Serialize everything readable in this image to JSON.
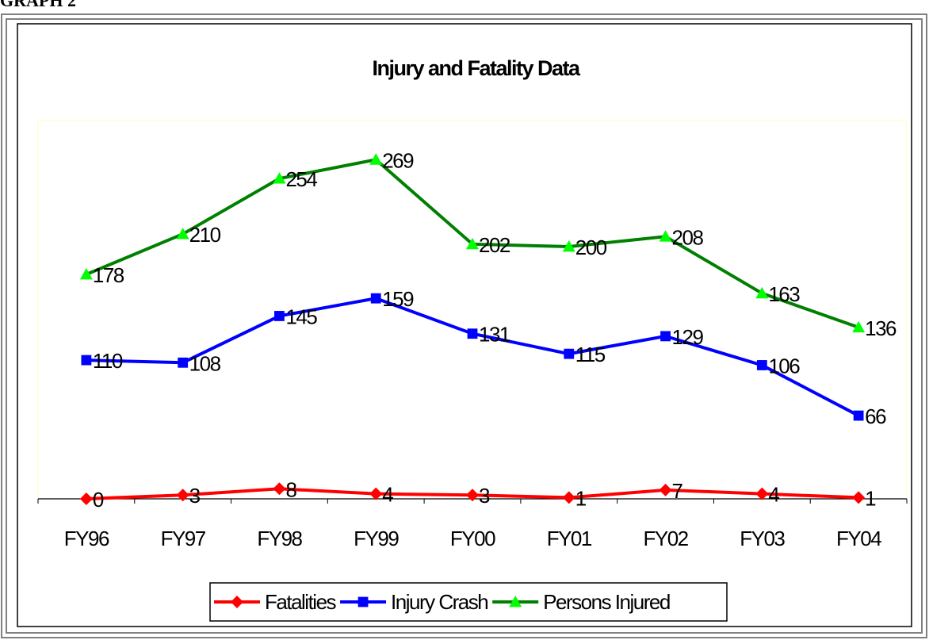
{
  "caption": "GRAPH 2",
  "chart_data": {
    "type": "line",
    "title": "Injury and Fatality Data",
    "categories": [
      "FY96",
      "FY97",
      "FY98",
      "FY99",
      "FY00",
      "FY01",
      "FY02",
      "FY03",
      "FY04"
    ],
    "series": [
      {
        "name": "Fatalities",
        "color": "#ff0000",
        "marker_color": "#ff0000",
        "marker": "diamond",
        "values": [
          0,
          3,
          8,
          4,
          3,
          1,
          7,
          4,
          1
        ]
      },
      {
        "name": "Injury Crash",
        "color": "#0000ff",
        "marker_color": "#0000ff",
        "marker": "square",
        "values": [
          110,
          108,
          145,
          159,
          131,
          115,
          129,
          106,
          66
        ]
      },
      {
        "name": "Persons Injured",
        "color": "#008000",
        "marker_color": "#00ff00",
        "marker": "triangle",
        "values": [
          178,
          210,
          254,
          269,
          202,
          200,
          208,
          163,
          136
        ]
      }
    ],
    "ylim": [
      0,
      300
    ],
    "legend": "bottom"
  }
}
